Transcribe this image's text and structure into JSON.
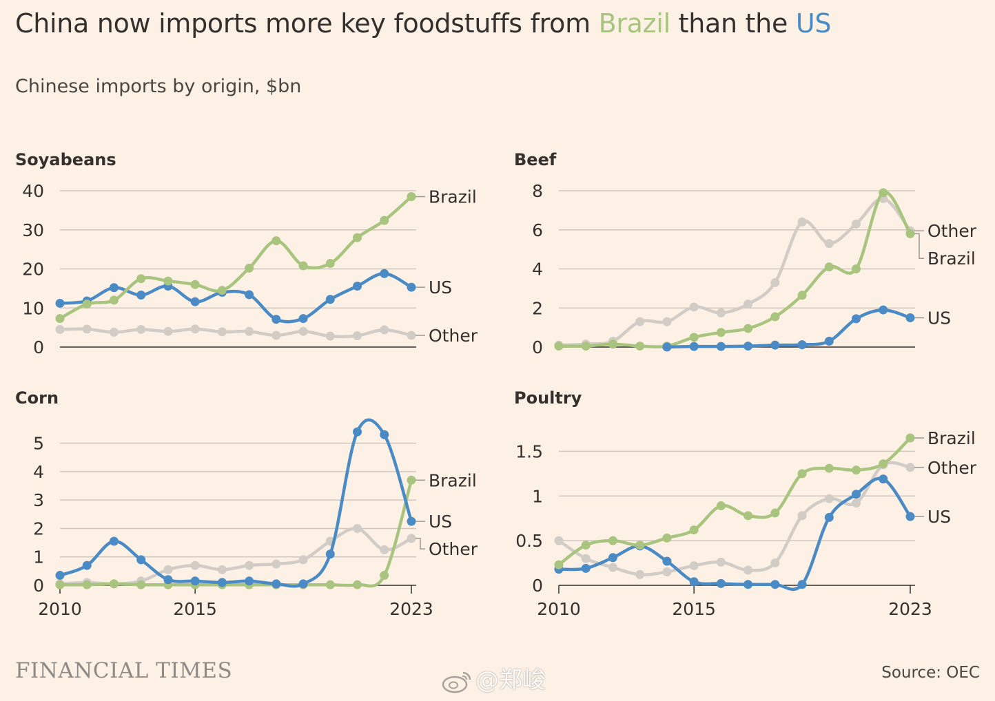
{
  "header": {
    "title_pre": "China now imports more key foodstuffs from ",
    "title_brazil": "Brazil",
    "title_mid": " than the ",
    "title_us": "US",
    "subtitle": "Chinese imports by origin, $bn"
  },
  "footer": {
    "logo": "FINANCIAL TIMES",
    "watermark": "@郑峻",
    "source": "Source: OEC"
  },
  "colors": {
    "Brazil": "#a9c47f",
    "US": "#4a8ac5",
    "Other": "#d2ccc7",
    "grid": "#cfc7bf",
    "axis": "#33302e",
    "text": "#33302e"
  },
  "chart_data": [
    {
      "type": "line",
      "title": "Soyabeans",
      "x": [
        2010,
        2011,
        2012,
        2013,
        2014,
        2015,
        2016,
        2017,
        2018,
        2019,
        2020,
        2021,
        2022,
        2023
      ],
      "ylim": [
        0,
        40
      ],
      "yticks": [
        0,
        10,
        20,
        30,
        40
      ],
      "ytick_labels": [
        "0",
        "10",
        "20",
        "30",
        "40"
      ],
      "xticks": [],
      "xtick_labels": [],
      "series": [
        {
          "name": "Other",
          "values": [
            4.5,
            4.6,
            3.8,
            4.5,
            4.0,
            4.6,
            3.9,
            4.0,
            3.0,
            4.0,
            2.8,
            2.9,
            4.4,
            3.0
          ]
        },
        {
          "name": "US",
          "values": [
            11.2,
            11.8,
            15.2,
            13.3,
            15.6,
            11.6,
            14.0,
            13.4,
            7.1,
            7.3,
            12.2,
            15.6,
            18.8,
            15.3
          ]
        },
        {
          "name": "Brazil",
          "values": [
            7.3,
            11.0,
            12.0,
            17.5,
            16.9,
            16.0,
            14.5,
            20.2,
            27.2,
            20.8,
            21.4,
            28.0,
            32.4,
            38.5
          ]
        }
      ],
      "labels": [
        {
          "series": "Brazil",
          "text": "Brazil",
          "value": 38.5
        },
        {
          "series": "US",
          "text": "US",
          "value": 15.3
        },
        {
          "series": "Other",
          "text": "Other",
          "value": 3.0
        }
      ]
    },
    {
      "type": "line",
      "title": "Beef",
      "x": [
        2010,
        2011,
        2012,
        2013,
        2014,
        2015,
        2016,
        2017,
        2018,
        2019,
        2020,
        2021,
        2022,
        2023
      ],
      "ylim": [
        0,
        8
      ],
      "yticks": [
        0,
        2,
        4,
        6,
        8
      ],
      "ytick_labels": [
        "0",
        "2",
        "4",
        "6",
        "8"
      ],
      "xticks": [],
      "xtick_labels": [],
      "series": [
        {
          "name": "Other",
          "values": [
            0.1,
            0.15,
            0.3,
            1.3,
            1.3,
            2.05,
            1.75,
            2.2,
            3.3,
            6.4,
            5.3,
            6.3,
            7.6,
            5.95
          ]
        },
        {
          "name": "Brazil",
          "values": [
            0.05,
            0.05,
            0.15,
            0.05,
            0.05,
            0.5,
            0.75,
            0.95,
            1.55,
            2.65,
            4.1,
            4.0,
            7.9,
            5.8
          ]
        },
        {
          "name": "US",
          "values": [
            null,
            null,
            null,
            null,
            0.0,
            0.03,
            0.03,
            0.05,
            0.1,
            0.12,
            0.3,
            1.45,
            1.9,
            1.5
          ]
        }
      ],
      "labels": [
        {
          "series": "Other",
          "text": "Other",
          "value": 5.95
        },
        {
          "series": "Brazil",
          "text": "Brazil",
          "value": 5.8
        },
        {
          "series": "US",
          "text": "US",
          "value": 1.5
        }
      ]
    },
    {
      "type": "line",
      "title": "Corn",
      "x": [
        2010,
        2011,
        2012,
        2013,
        2014,
        2015,
        2016,
        2017,
        2018,
        2019,
        2020,
        2021,
        2022,
        2023
      ],
      "ylim": [
        0,
        5.5
      ],
      "yticks": [
        0,
        1,
        2,
        3,
        4,
        5
      ],
      "ytick_labels": [
        "0",
        "1",
        "2",
        "3",
        "4",
        "5"
      ],
      "xticks": [
        2010,
        2015,
        2023
      ],
      "xtick_labels": [
        "2010",
        "2015",
        "2023"
      ],
      "series": [
        {
          "name": "Other",
          "values": [
            0.05,
            0.1,
            0.05,
            0.15,
            0.55,
            0.7,
            0.55,
            0.7,
            0.75,
            0.9,
            1.55,
            2.0,
            1.25,
            1.65
          ]
        },
        {
          "name": "Brazil",
          "values": [
            0.02,
            0.02,
            0.05,
            0.02,
            0.02,
            0.02,
            0.02,
            0.02,
            0.02,
            0.02,
            0.02,
            0.02,
            0.35,
            3.7
          ]
        },
        {
          "name": "US",
          "values": [
            0.35,
            0.7,
            1.55,
            0.9,
            0.2,
            0.15,
            0.1,
            0.15,
            0.05,
            0.05,
            1.1,
            5.4,
            5.3,
            2.25
          ]
        }
      ],
      "labels": [
        {
          "series": "Brazil",
          "text": "Brazil",
          "value": 3.7
        },
        {
          "series": "US",
          "text": "US",
          "value": 2.25
        },
        {
          "series": "Other",
          "text": "Other",
          "value": 1.65
        }
      ]
    },
    {
      "type": "line",
      "title": "Poultry",
      "x": [
        2010,
        2011,
        2012,
        2013,
        2014,
        2015,
        2016,
        2017,
        2018,
        2019,
        2020,
        2021,
        2022,
        2023
      ],
      "ylim": [
        0,
        1.75
      ],
      "yticks": [
        0,
        0.5,
        1,
        1.5
      ],
      "ytick_labels": [
        "0",
        "0.5",
        "1",
        "1.5"
      ],
      "xticks": [
        2010,
        2015,
        2023
      ],
      "xtick_labels": [
        "2010",
        "2015",
        "2023"
      ],
      "series": [
        {
          "name": "Other",
          "values": [
            0.5,
            0.3,
            0.2,
            0.12,
            0.15,
            0.22,
            0.26,
            0.17,
            0.25,
            0.78,
            0.97,
            0.92,
            1.35,
            1.32
          ]
        },
        {
          "name": "US",
          "values": [
            0.18,
            0.19,
            0.31,
            0.44,
            0.27,
            0.04,
            0.02,
            0.01,
            0.01,
            0.01,
            0.76,
            1.02,
            1.19,
            0.77
          ]
        },
        {
          "name": "Brazil",
          "values": [
            0.23,
            0.45,
            0.5,
            0.45,
            0.53,
            0.62,
            0.89,
            0.78,
            0.81,
            1.25,
            1.31,
            1.29,
            1.36,
            1.65
          ]
        }
      ],
      "labels": [
        {
          "series": "Brazil",
          "text": "Brazil",
          "value": 1.65
        },
        {
          "series": "Other",
          "text": "Other",
          "value": 1.32
        },
        {
          "series": "US",
          "text": "US",
          "value": 0.77
        }
      ]
    }
  ]
}
